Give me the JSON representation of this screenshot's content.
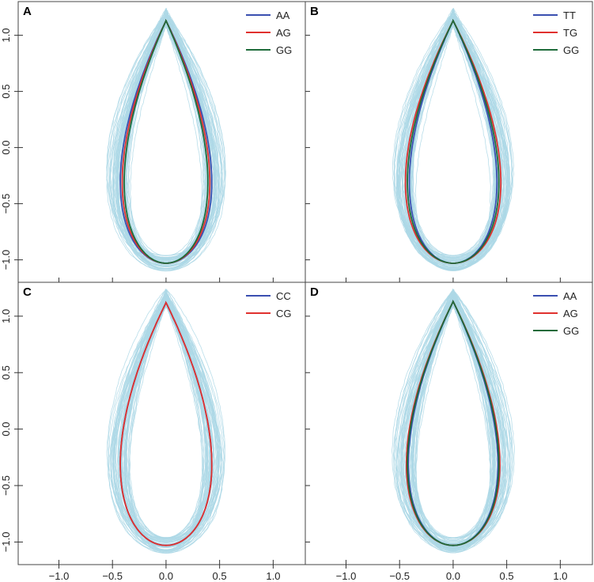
{
  "colors": {
    "background_curves": "#add8e6",
    "blue": "#3a4fb0",
    "red": "#e0312e",
    "green": "#1e6b3a"
  },
  "axes": {
    "x_ticks": [
      -1.0,
      -0.5,
      0.0,
      0.5,
      1.0
    ],
    "x_tick_labels": [
      "−1.0",
      "−0.5",
      "0.0",
      "0.5",
      "1.0"
    ],
    "y_ticks": [
      1.0,
      0.5,
      0.0,
      -0.5,
      -1.0
    ],
    "y_tick_labels": [
      "1.0",
      "0.5",
      "0.0",
      "−0.5",
      "−1.0"
    ],
    "xlim": [
      -1.38,
      1.3
    ],
    "ylim": [
      -1.2,
      1.3
    ]
  },
  "chart_data": [
    {
      "panel": "A",
      "type": "line",
      "background_curve_count": 60,
      "series": [
        {
          "name": "AA",
          "color": "#3a4fb0",
          "half_width": 0.47,
          "top": 1.13,
          "bottom": -1.03
        },
        {
          "name": "AG",
          "color": "#e0312e",
          "half_width": 0.45,
          "top": 1.13,
          "bottom": -1.03
        },
        {
          "name": "GG",
          "color": "#1e6b3a",
          "half_width": 0.43,
          "top": 1.13,
          "bottom": -1.03
        }
      ]
    },
    {
      "panel": "B",
      "type": "line",
      "background_curve_count": 60,
      "series": [
        {
          "name": "TT",
          "color": "#3a4fb0",
          "half_width": 0.45,
          "top": 1.13,
          "bottom": -1.03
        },
        {
          "name": "TG",
          "color": "#e0312e",
          "half_width": 0.49,
          "top": 1.13,
          "bottom": -1.03
        },
        {
          "name": "GG",
          "color": "#1e6b3a",
          "half_width": 0.47,
          "top": 1.13,
          "bottom": -1.03
        }
      ]
    },
    {
      "panel": "C",
      "type": "line",
      "background_curve_count": 60,
      "series": [
        {
          "name": "CC",
          "color": "#3a4fb0",
          "half_width": 0.47,
          "top": 1.12,
          "bottom": -1.03
        },
        {
          "name": "CG",
          "color": "#e0312e",
          "half_width": 0.47,
          "top": 1.12,
          "bottom": -1.03
        }
      ]
    },
    {
      "panel": "D",
      "type": "line",
      "background_curve_count": 60,
      "series": [
        {
          "name": "AA",
          "color": "#3a4fb0",
          "half_width": 0.46,
          "top": 1.13,
          "bottom": -1.03
        },
        {
          "name": "AG",
          "color": "#e0312e",
          "half_width": 0.48,
          "top": 1.13,
          "bottom": -1.03
        },
        {
          "name": "GG",
          "color": "#1e6b3a",
          "half_width": 0.47,
          "top": 1.13,
          "bottom": -1.03
        }
      ]
    }
  ]
}
